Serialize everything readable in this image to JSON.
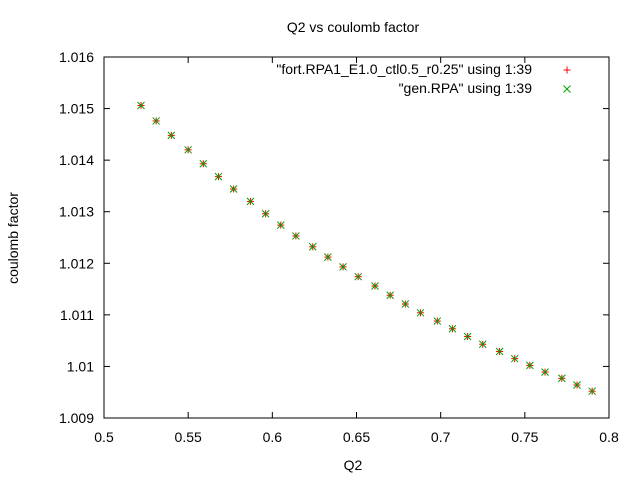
{
  "chart_data": {
    "type": "scatter",
    "title": "Q2 vs coulomb factor",
    "xlabel": "Q2",
    "ylabel": "coulomb factor",
    "xlim": [
      0.5,
      0.8
    ],
    "ylim": [
      1.009,
      1.016
    ],
    "xticks": [
      "0.5",
      "0.55",
      "0.6",
      "0.65",
      "0.7",
      "0.75",
      "0.8"
    ],
    "yticks": [
      "1.009",
      "1.01",
      "1.011",
      "1.012",
      "1.013",
      "1.014",
      "1.015",
      "1.016"
    ],
    "grid": false,
    "legend_position": "top-right",
    "series": [
      {
        "name": "\"fort.RPA1_E1.0_ctl0.5_r0.25\" using 1:39",
        "marker": "plus",
        "color": "#ff0000",
        "x": [
          0.522,
          0.531,
          0.54,
          0.55,
          0.559,
          0.568,
          0.577,
          0.587,
          0.596,
          0.605,
          0.614,
          0.624,
          0.633,
          0.642,
          0.651,
          0.661,
          0.67,
          0.679,
          0.688,
          0.698,
          0.707,
          0.716,
          0.725,
          0.735,
          0.744,
          0.753,
          0.762,
          0.772,
          0.781,
          0.79
        ],
        "y": [
          1.01506,
          1.01476,
          1.01448,
          1.0142,
          1.01393,
          1.01368,
          1.01344,
          1.0132,
          1.01296,
          1.01274,
          1.01253,
          1.01232,
          1.01212,
          1.01193,
          1.01174,
          1.01156,
          1.01138,
          1.01121,
          1.01104,
          1.01088,
          1.01073,
          1.01058,
          1.01043,
          1.01029,
          1.01015,
          1.01002,
          1.00989,
          1.00977,
          1.00964,
          1.00952
        ]
      },
      {
        "name": "\"gen.RPA\" using 1:39",
        "marker": "cross",
        "color": "#00a000",
        "x": [
          0.522,
          0.531,
          0.54,
          0.55,
          0.559,
          0.568,
          0.577,
          0.587,
          0.596,
          0.605,
          0.614,
          0.624,
          0.633,
          0.642,
          0.651,
          0.661,
          0.67,
          0.679,
          0.688,
          0.698,
          0.707,
          0.716,
          0.725,
          0.735,
          0.744,
          0.753,
          0.762,
          0.772,
          0.781,
          0.79
        ],
        "y": [
          1.01506,
          1.01476,
          1.01448,
          1.0142,
          1.01393,
          1.01368,
          1.01344,
          1.0132,
          1.01296,
          1.01274,
          1.01253,
          1.01232,
          1.01212,
          1.01193,
          1.01174,
          1.01156,
          1.01138,
          1.01121,
          1.01104,
          1.01088,
          1.01073,
          1.01058,
          1.01043,
          1.01029,
          1.01015,
          1.01002,
          1.00989,
          1.00977,
          1.00964,
          1.00952
        ]
      }
    ]
  }
}
